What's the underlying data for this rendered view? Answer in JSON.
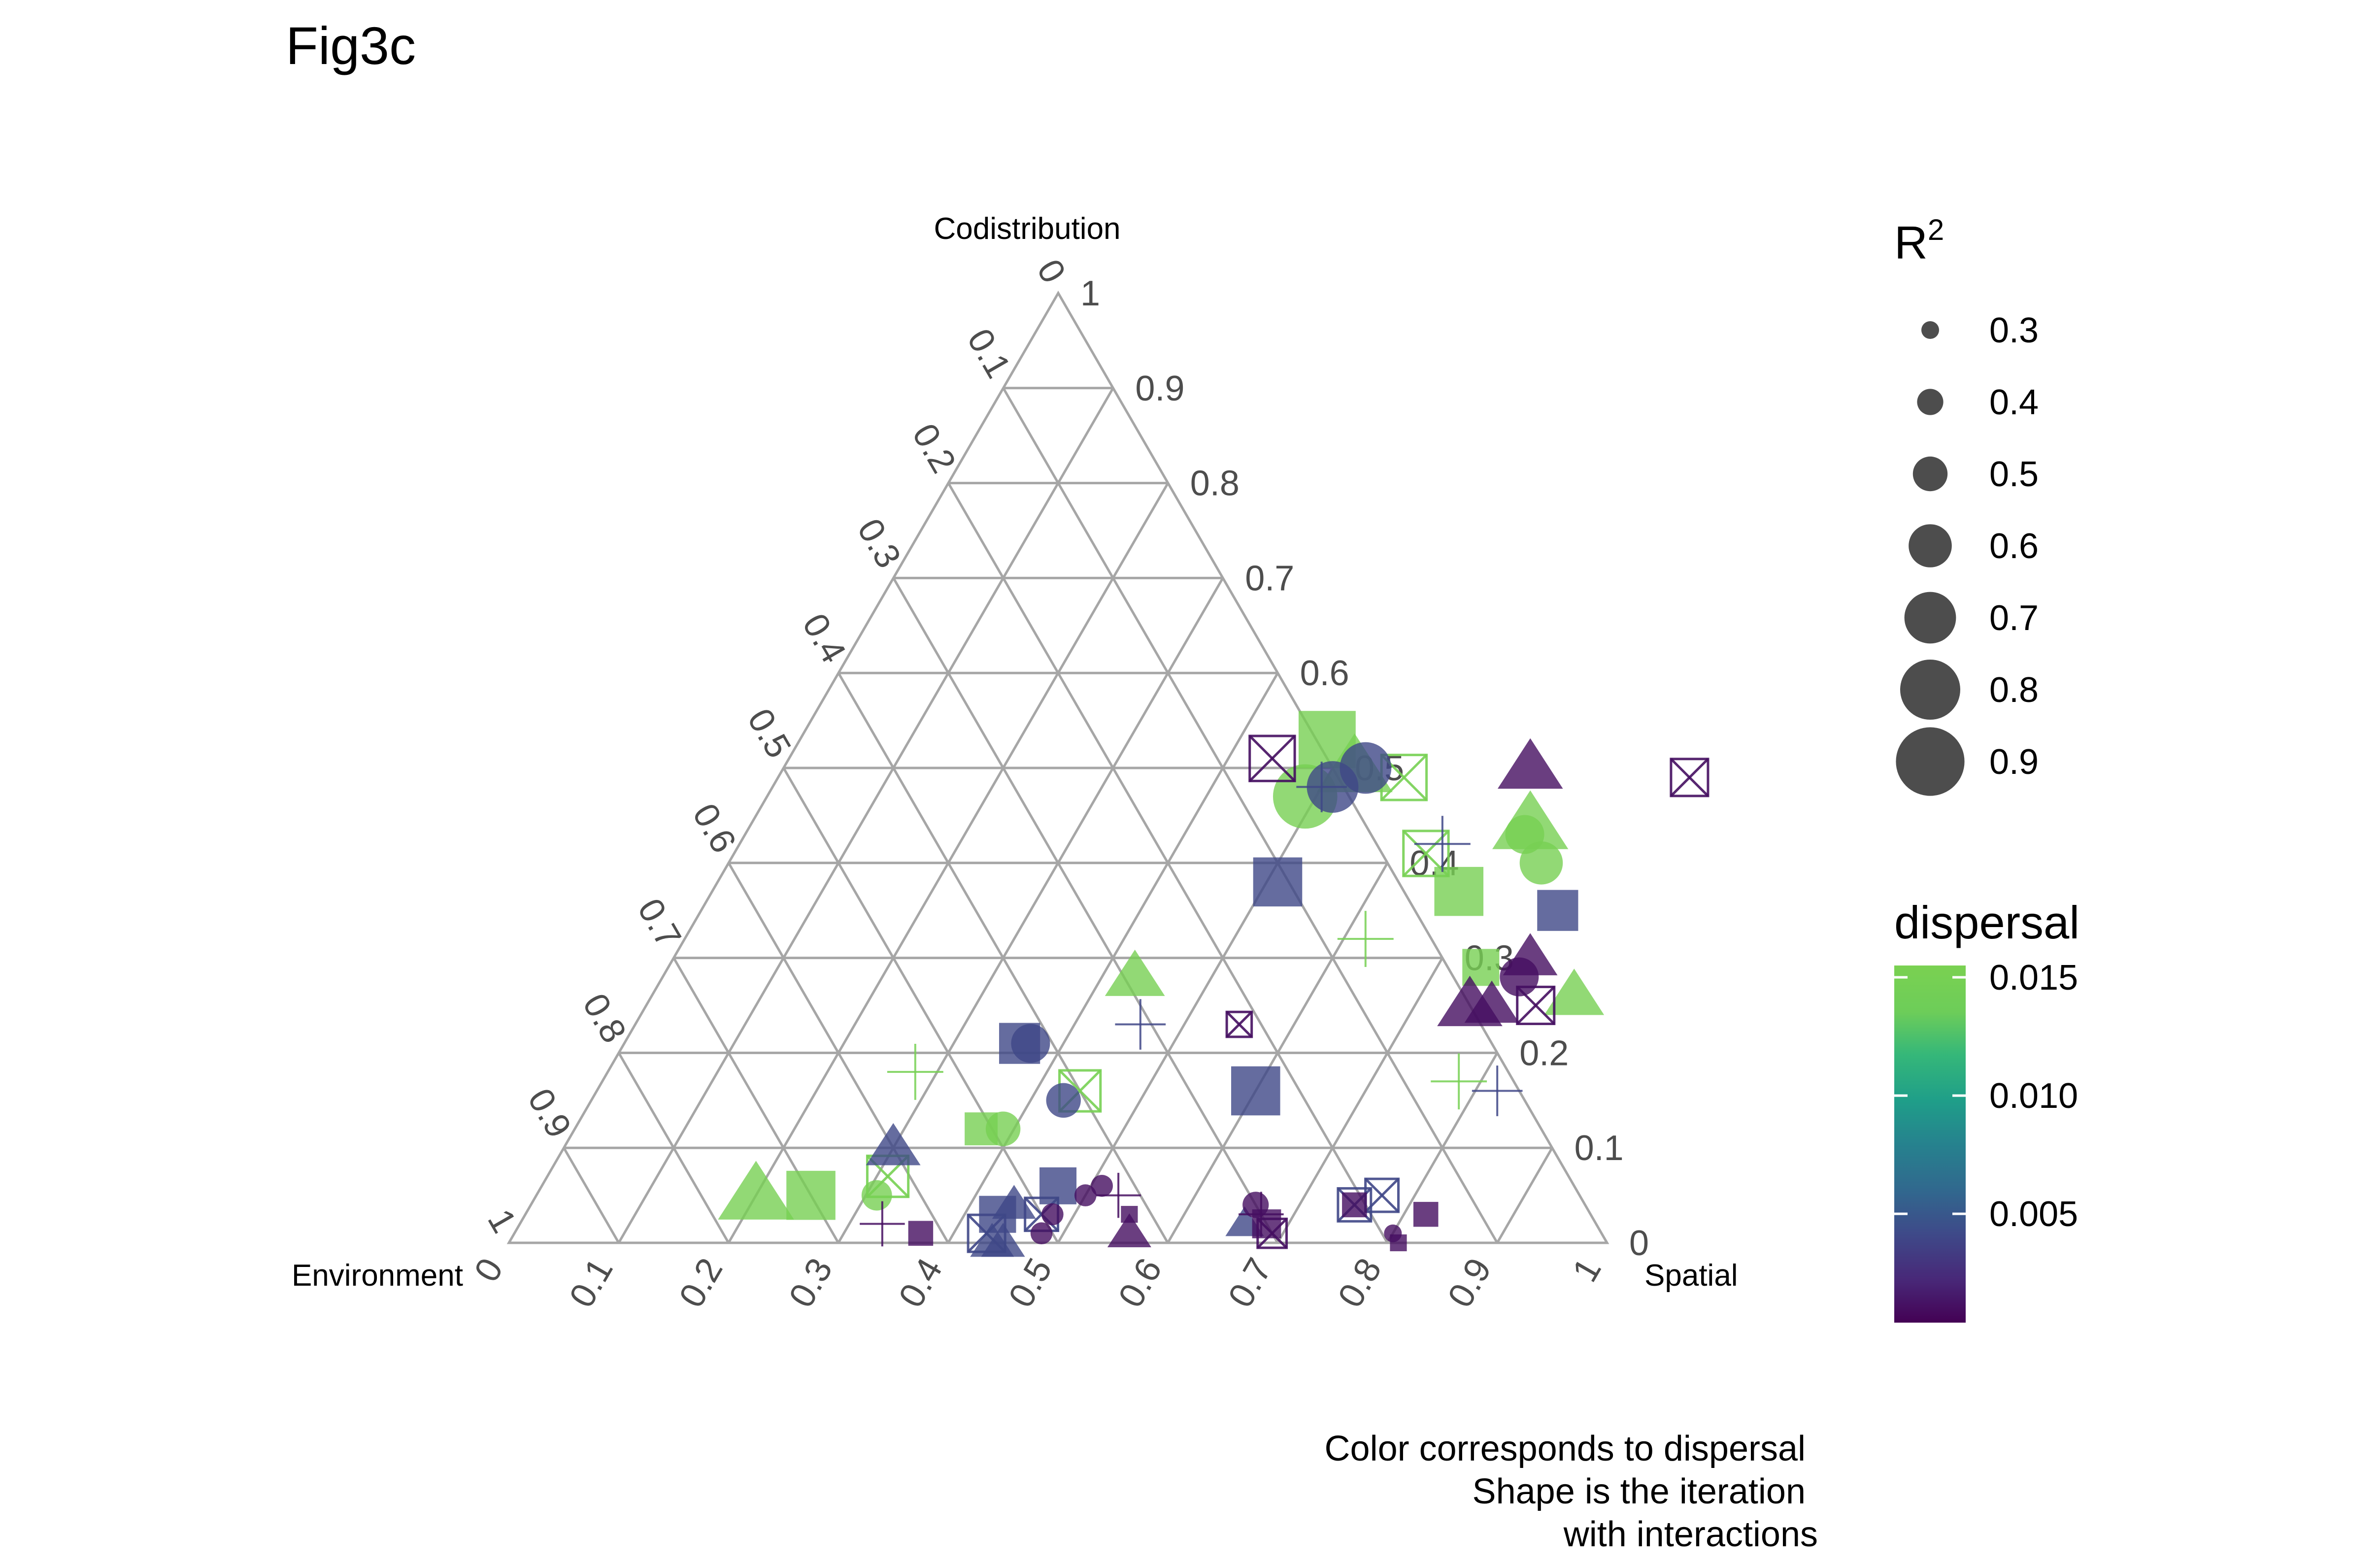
{
  "chart_data": {
    "type": "scatter",
    "subtype": "ternary",
    "title": "Fig3c",
    "axes": {
      "top": "Codistribution",
      "left": "Environment",
      "right": "Spatial"
    },
    "ticks": [
      "0",
      "0.1",
      "0.2",
      "0.3",
      "0.4",
      "0.5",
      "0.6",
      "0.7",
      "0.8",
      "0.9",
      "1"
    ],
    "grid": true,
    "size_legend": {
      "title": "R",
      "title_superscript": "2",
      "labels": [
        "0.3",
        "0.4",
        "0.5",
        "0.6",
        "0.7",
        "0.8",
        "0.9"
      ],
      "values": [
        0.3,
        0.4,
        0.5,
        0.6,
        0.7,
        0.8,
        0.9
      ]
    },
    "color_legend": {
      "title": "dispersal",
      "labels": [
        "0.015",
        "0.010",
        "0.005"
      ],
      "values": [
        0.015,
        0.01,
        0.005
      ],
      "range": [
        0.0004,
        0.0155
      ],
      "low_color": "#440154",
      "mid_color": "#21908C",
      "high_color": "#7AD151"
    },
    "caption": [
      "Color corresponds to dispersal",
      "Shape is the iteration",
      "with interactions"
    ],
    "points": [
      {
        "spatial": 0.25,
        "codistribution": 0.05,
        "dispersal": 0.015,
        "r2": 0.7,
        "shape": "square"
      },
      {
        "spatial": 0.2,
        "codistribution": 0.05,
        "dispersal": 0.015,
        "r2": 0.8,
        "shape": "triangle"
      },
      {
        "spatial": 0.31,
        "codistribution": 0.05,
        "dispersal": 0.015,
        "r2": 0.45,
        "shape": "circle"
      },
      {
        "spatial": 0.31,
        "codistribution": 0.07,
        "dispersal": 0.015,
        "r2": 0.6,
        "shape": "boxx"
      },
      {
        "spatial": 0.37,
        "codistribution": 0.12,
        "dispersal": 0.015,
        "r2": 0.5,
        "shape": "square"
      },
      {
        "spatial": 0.39,
        "codistribution": 0.12,
        "dispersal": 0.015,
        "r2": 0.5,
        "shape": "circle"
      },
      {
        "spatial": 0.28,
        "codistribution": 0.18,
        "dispersal": 0.015,
        "r2": 0.6,
        "shape": "plus"
      },
      {
        "spatial": 0.44,
        "codistribution": 0.16,
        "dispersal": 0.015,
        "r2": 0.6,
        "shape": "boxx"
      },
      {
        "spatial": 0.43,
        "codistribution": 0.28,
        "dispersal": 0.015,
        "r2": 0.65,
        "shape": "triangle"
      },
      {
        "spatial": 0.62,
        "codistribution": 0.32,
        "dispersal": 0.015,
        "r2": 0.6,
        "shape": "plus"
      },
      {
        "spatial": 0.48,
        "codistribution": 0.53,
        "dispersal": 0.015,
        "r2": 0.8,
        "shape": "square"
      },
      {
        "spatial": 0.52,
        "codistribution": 0.5,
        "dispersal": 0.015,
        "r2": 0.8,
        "shape": "triangle"
      },
      {
        "spatial": 0.49,
        "codistribution": 0.47,
        "dispersal": 0.015,
        "r2": 0.85,
        "shape": "circle"
      },
      {
        "spatial": 0.57,
        "codistribution": 0.49,
        "dispersal": 0.015,
        "r2": 0.65,
        "shape": "boxx"
      },
      {
        "spatial": 0.63,
        "codistribution": 0.41,
        "dispersal": 0.015,
        "r2": 0.65,
        "shape": "boxx"
      },
      {
        "spatial": 0.68,
        "codistribution": 0.37,
        "dispersal": 0.015,
        "r2": 0.7,
        "shape": "square"
      },
      {
        "spatial": 0.71,
        "codistribution": 0.44,
        "dispersal": 0.015,
        "r2": 0.8,
        "shape": "triangle"
      },
      {
        "spatial": 0.71,
        "codistribution": 0.43,
        "dispersal": 0.015,
        "r2": 0.55,
        "shape": "circle"
      },
      {
        "spatial": 0.74,
        "codistribution": 0.4,
        "dispersal": 0.015,
        "r2": 0.6,
        "shape": "circle"
      },
      {
        "spatial": 0.74,
        "codistribution": 0.29,
        "dispersal": 0.015,
        "r2": 0.55,
        "shape": "square"
      },
      {
        "spatial": 0.84,
        "codistribution": 0.26,
        "dispersal": 0.015,
        "r2": 0.65,
        "shape": "triangle"
      },
      {
        "spatial": 0.78,
        "codistribution": 0.17,
        "dispersal": 0.015,
        "r2": 0.6,
        "shape": "plus"
      },
      {
        "spatial": 0.3,
        "codistribution": 0.1,
        "dispersal": 0.004,
        "r2": 0.6,
        "shape": "triangle"
      },
      {
        "spatial": 0.36,
        "codistribution": 0.21,
        "dispersal": 0.004,
        "r2": 0.6,
        "shape": "square"
      },
      {
        "spatial": 0.37,
        "codistribution": 0.21,
        "dispersal": 0.004,
        "r2": 0.55,
        "shape": "circle"
      },
      {
        "spatial": 0.43,
        "codistribution": 0.15,
        "dispersal": 0.004,
        "r2": 0.5,
        "shape": "circle"
      },
      {
        "spatial": 0.46,
        "codistribution": 0.23,
        "dispersal": 0.004,
        "r2": 0.55,
        "shape": "plus"
      },
      {
        "spatial": 0.51,
        "codistribution": 0.38,
        "dispersal": 0.004,
        "r2": 0.7,
        "shape": "square"
      },
      {
        "spatial": 0.5,
        "codistribution": 0.48,
        "dispersal": 0.004,
        "r2": 0.55,
        "shape": "plus"
      },
      {
        "spatial": 0.51,
        "codistribution": 0.48,
        "dispersal": 0.004,
        "r2": 0.7,
        "shape": "circle"
      },
      {
        "spatial": 0.53,
        "codistribution": 0.5,
        "dispersal": 0.004,
        "r2": 0.7,
        "shape": "circle"
      },
      {
        "spatial": 0.6,
        "codistribution": 0.16,
        "dispersal": 0.004,
        "r2": 0.7,
        "shape": "square"
      },
      {
        "spatial": 0.64,
        "codistribution": 0.42,
        "dispersal": 0.004,
        "r2": 0.6,
        "shape": "plus"
      },
      {
        "spatial": 0.78,
        "codistribution": 0.35,
        "dispersal": 0.004,
        "r2": 0.6,
        "shape": "square"
      },
      {
        "spatial": 0.82,
        "codistribution": 0.16,
        "dispersal": 0.004,
        "r2": 0.55,
        "shape": "plus"
      },
      {
        "spatial": 0.43,
        "codistribution": 0.03,
        "dispersal": 0.004,
        "r2": 0.55,
        "shape": "square"
      },
      {
        "spatial": 0.43,
        "codistribution": 0.01,
        "dispersal": 0.004,
        "r2": 0.55,
        "shape": "boxx"
      },
      {
        "spatial": 0.44,
        "codistribution": 0.04,
        "dispersal": 0.004,
        "r2": 0.5,
        "shape": "triangle"
      },
      {
        "spatial": 0.44,
        "codistribution": 0.0,
        "dispersal": 0.004,
        "r2": 0.5,
        "shape": "triangle"
      },
      {
        "spatial": 0.45,
        "codistribution": 0.0,
        "dispersal": 0.004,
        "r2": 0.5,
        "shape": "triangle"
      },
      {
        "spatial": 0.47,
        "codistribution": 0.03,
        "dispersal": 0.004,
        "r2": 0.5,
        "shape": "boxx"
      },
      {
        "spatial": 0.47,
        "codistribution": 0.06,
        "dispersal": 0.004,
        "r2": 0.55,
        "shape": "square"
      },
      {
        "spatial": 0.66,
        "codistribution": 0.02,
        "dispersal": 0.004,
        "r2": 0.45,
        "shape": "triangle"
      },
      {
        "spatial": 0.77,
        "codistribution": 0.05,
        "dispersal": 0.004,
        "r2": 0.5,
        "shape": "boxx"
      },
      {
        "spatial": 0.75,
        "codistribution": 0.04,
        "dispersal": 0.004,
        "r2": 0.5,
        "shape": "boxx"
      },
      {
        "spatial": 0.33,
        "codistribution": 0.02,
        "dispersal": 0.001,
        "r2": 0.5,
        "shape": "plus"
      },
      {
        "spatial": 0.37,
        "codistribution": 0.01,
        "dispersal": 0.001,
        "r2": 0.4,
        "shape": "square"
      },
      {
        "spatial": 0.48,
        "codistribution": 0.01,
        "dispersal": 0.001,
        "r2": 0.35,
        "shape": "circle"
      },
      {
        "spatial": 0.48,
        "codistribution": 0.03,
        "dispersal": 0.001,
        "r2": 0.35,
        "shape": "circle"
      },
      {
        "spatial": 0.5,
        "codistribution": 0.05,
        "dispersal": 0.001,
        "r2": 0.35,
        "shape": "circle"
      },
      {
        "spatial": 0.51,
        "codistribution": 0.06,
        "dispersal": 0.001,
        "r2": 0.35,
        "shape": "circle"
      },
      {
        "spatial": 0.53,
        "codistribution": 0.05,
        "dispersal": 0.001,
        "r2": 0.5,
        "shape": "plus"
      },
      {
        "spatial": 0.55,
        "codistribution": 0.03,
        "dispersal": 0.001,
        "r2": 0.3,
        "shape": "square"
      },
      {
        "spatial": 0.56,
        "codistribution": 0.01,
        "dispersal": 0.001,
        "r2": 0.5,
        "shape": "triangle"
      },
      {
        "spatial": 0.66,
        "codistribution": 0.04,
        "dispersal": 0.001,
        "r2": 0.4,
        "shape": "circle"
      },
      {
        "spatial": 0.67,
        "codistribution": 0.03,
        "dispersal": 0.001,
        "r2": 0.5,
        "shape": "plus"
      },
      {
        "spatial": 0.68,
        "codistribution": 0.02,
        "dispersal": 0.001,
        "r2": 0.45,
        "shape": "square"
      },
      {
        "spatial": 0.69,
        "codistribution": 0.01,
        "dispersal": 0.001,
        "r2": 0.45,
        "shape": "boxx"
      },
      {
        "spatial": 0.75,
        "codistribution": 0.04,
        "dispersal": 0.001,
        "r2": 0.4,
        "shape": "square"
      },
      {
        "spatial": 0.8,
        "codistribution": 0.01,
        "dispersal": 0.001,
        "r2": 0.3,
        "shape": "circle"
      },
      {
        "spatial": 0.81,
        "codistribution": 0.0,
        "dispersal": 0.001,
        "r2": 0.3,
        "shape": "square"
      },
      {
        "spatial": 0.82,
        "codistribution": 0.03,
        "dispersal": 0.001,
        "r2": 0.4,
        "shape": "square"
      },
      {
        "spatial": 0.55,
        "codistribution": 0.23,
        "dispersal": 0.001,
        "r2": 0.4,
        "shape": "boxx"
      },
      {
        "spatial": 0.44,
        "codistribution": 0.51,
        "dispersal": 0.001,
        "r2": 0.65,
        "shape": "boxx"
      },
      {
        "spatial": 0.68,
        "codistribution": 0.5,
        "dispersal": 0.001,
        "r2": 0.7,
        "shape": "triangle"
      },
      {
        "spatial": 0.83,
        "codistribution": 0.49,
        "dispersal": 0.001,
        "r2": 0.55,
        "shape": "boxx"
      },
      {
        "spatial": 0.78,
        "codistribution": 0.3,
        "dispersal": 0.001,
        "r2": 0.6,
        "shape": "triangle"
      },
      {
        "spatial": 0.78,
        "codistribution": 0.28,
        "dispersal": 0.001,
        "r2": 0.55,
        "shape": "circle"
      },
      {
        "spatial": 0.75,
        "codistribution": 0.25,
        "dispersal": 0.001,
        "r2": 0.7,
        "shape": "triangle"
      },
      {
        "spatial": 0.77,
        "codistribution": 0.25,
        "dispersal": 0.001,
        "r2": 0.6,
        "shape": "triangle"
      },
      {
        "spatial": 0.81,
        "codistribution": 0.25,
        "dispersal": 0.001,
        "r2": 0.55,
        "shape": "boxx"
      }
    ]
  }
}
